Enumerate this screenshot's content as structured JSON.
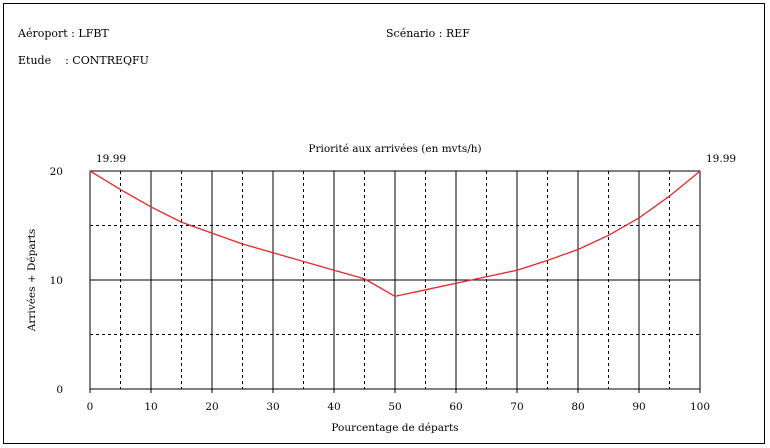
{
  "header": {
    "airport_label": "Aéroport",
    "airport_value": "LFBT",
    "scenario_label": "Scénario",
    "scenario_value": "REF",
    "study_label": "Etude",
    "study_value": "CONTREQFU"
  },
  "chart_data": {
    "type": "line",
    "title": "Priorité aux arrivées (en mvts/h)",
    "xlabel": "Pourcentage de départs",
    "ylabel": "Arrivées + Départs",
    "xlim": [
      0,
      100
    ],
    "ylim": [
      0,
      20
    ],
    "x_ticks": [
      0,
      10,
      20,
      30,
      40,
      50,
      60,
      70,
      80,
      90,
      100
    ],
    "y_ticks": [
      0,
      10,
      20
    ],
    "grid": true,
    "annotations": [
      {
        "text": "19.99",
        "at_x": 0
      },
      {
        "text": "19.99",
        "at_x": 100
      }
    ],
    "series": [
      {
        "color": "#e8262a",
        "x": [
          0,
          5,
          10,
          15,
          20,
          25,
          30,
          35,
          40,
          45,
          50,
          55,
          60,
          65,
          70,
          75,
          80,
          85,
          90,
          95,
          100
        ],
        "y": [
          19.99,
          18.3,
          16.7,
          15.3,
          14.3,
          13.3,
          12.5,
          11.7,
          10.9,
          10.1,
          8.5,
          9.1,
          9.7,
          10.3,
          10.9,
          11.8,
          12.8,
          14.1,
          15.7,
          17.7,
          19.99
        ]
      }
    ]
  }
}
